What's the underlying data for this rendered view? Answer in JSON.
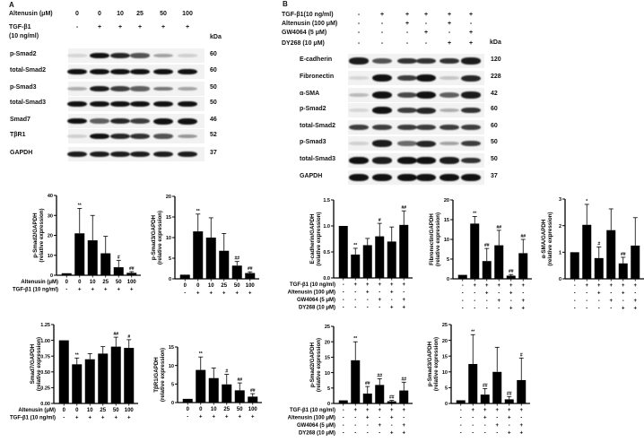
{
  "panel_a": {
    "letter": "A",
    "conditions": [
      {
        "label": "Altenusin (μM)",
        "values": [
          "0",
          "0",
          "10",
          "25",
          "50",
          "100"
        ]
      },
      {
        "label": "TGF-β1",
        "label2": "(10 ng/ml)",
        "values": [
          "-",
          "+",
          "+",
          "+",
          "+",
          "+"
        ]
      }
    ],
    "kda_label": "kDa",
    "blots": [
      {
        "name": "p-Smad2",
        "kda": "60",
        "intensity": [
          0.02,
          0.95,
          0.8,
          0.6,
          0.25,
          0.05
        ]
      },
      {
        "name": "total-Smad2",
        "kda": "60",
        "intensity": [
          0.95,
          0.9,
          0.9,
          0.9,
          0.9,
          0.9
        ]
      },
      {
        "name": "p-Smad3",
        "kda": "50",
        "intensity": [
          0.2,
          0.85,
          0.7,
          0.55,
          0.45,
          0.25
        ]
      },
      {
        "name": "total-Smad3",
        "kda": "50",
        "intensity": [
          0.95,
          0.95,
          0.95,
          0.9,
          0.95,
          0.95
        ]
      },
      {
        "name": "Smad7",
        "kda": "46",
        "intensity": [
          0.95,
          0.55,
          0.8,
          0.7,
          1.0,
          1.0
        ]
      },
      {
        "name": "TβR1",
        "kda": "52",
        "intensity": [
          0.05,
          0.95,
          0.8,
          0.75,
          0.6,
          0.3
        ]
      },
      {
        "name": "GAPDH",
        "kda": "37",
        "intensity": [
          0.85,
          0.85,
          0.85,
          0.85,
          0.85,
          0.85
        ]
      }
    ]
  },
  "panel_b": {
    "letter": "B",
    "conditions": [
      {
        "label": "TGF-β1(10 ng/ml)",
        "values": [
          "-",
          "+",
          "+",
          "+",
          "+",
          "+"
        ]
      },
      {
        "label": "Altenusin (100 μM)",
        "values": [
          "-",
          "-",
          "+",
          "-",
          "+",
          "-"
        ]
      },
      {
        "label": "GW4064 (5 μM)",
        "values": [
          "-",
          "-",
          "-",
          "+",
          "-",
          "+"
        ]
      },
      {
        "label": "DY268 (10 μM)",
        "values": [
          "-",
          "-",
          "-",
          "-",
          "+",
          "+"
        ]
      }
    ],
    "kda_label": "kDa",
    "blots": [
      {
        "name": "E-cadherin",
        "kda": "120",
        "intensity": [
          0.85,
          0.6,
          0.75,
          0.75,
          0.75,
          0.85
        ]
      },
      {
        "name": "Fibronectin",
        "kda": "228",
        "intensity": [
          0.02,
          1.0,
          0.7,
          1.0,
          0.1,
          0.8
        ]
      },
      {
        "name": "α-SMA",
        "kda": "42",
        "intensity": [
          0.15,
          0.9,
          0.65,
          0.95,
          0.55,
          0.85
        ]
      },
      {
        "name": "p-Smad2",
        "kda": "60",
        "intensity": [
          0.02,
          0.9,
          0.7,
          0.8,
          0.2,
          0.75
        ]
      },
      {
        "name": "total-Smad2",
        "kda": "60",
        "intensity": [
          0.7,
          0.7,
          0.7,
          0.7,
          0.7,
          0.7
        ]
      },
      {
        "name": "p-Smad3",
        "kda": "50",
        "intensity": [
          0.05,
          0.85,
          0.5,
          0.8,
          0.25,
          0.7
        ]
      },
      {
        "name": "total-Smad3",
        "kda": "50",
        "intensity": [
          0.9,
          0.85,
          0.9,
          0.9,
          0.85,
          0.75
        ]
      },
      {
        "name": "GAPDH",
        "kda": "37",
        "intensity": [
          0.95,
          0.95,
          0.95,
          0.95,
          0.95,
          0.95
        ]
      }
    ]
  },
  "chart_data": [
    {
      "type": "bar",
      "panel": "A",
      "ylabel": "p-Smad2/GAPDH",
      "ylabel2": "(relative expression)",
      "ylim": [
        0,
        40
      ],
      "yticks": [
        "0",
        "10",
        "20",
        "30",
        "40"
      ],
      "categories": [
        "0",
        "0",
        "10",
        "25",
        "50",
        "100"
      ],
      "row_labels": [
        "Altenusin (μM)",
        "TGF-β1 (10 ng/ml)"
      ],
      "rows": [
        [
          "0",
          "0",
          "10",
          "25",
          "50",
          "100"
        ],
        [
          "-",
          "+",
          "+",
          "+",
          "+",
          "+"
        ]
      ],
      "values": [
        1,
        21,
        17.5,
        11,
        4,
        1.2
      ],
      "errors": [
        0,
        12.5,
        12.5,
        8.5,
        3.5,
        0.6
      ],
      "annotations": [
        "",
        "**",
        "",
        "",
        "#",
        "##"
      ]
    },
    {
      "type": "bar",
      "panel": "A",
      "ylabel": "p-Smad3/GAPDH",
      "ylabel2": "(relative expression)",
      "ylim": [
        0,
        20
      ],
      "yticks": [
        "0",
        "5",
        "10",
        "15",
        "20"
      ],
      "categories": [
        "0",
        "0",
        "10",
        "25",
        "50",
        "100"
      ],
      "rows": [
        [
          "0",
          "0",
          "10",
          "25",
          "50",
          "100"
        ],
        [
          "-",
          "+",
          "+",
          "+",
          "+",
          "+"
        ]
      ],
      "values": [
        1,
        11.5,
        10,
        6.8,
        3.2,
        1.4
      ],
      "errors": [
        0,
        4.2,
        4.8,
        4.2,
        1,
        0.3
      ],
      "annotations": [
        "",
        "**",
        "",
        "",
        "##",
        "##"
      ]
    },
    {
      "type": "bar",
      "panel": "A",
      "ylabel": "Smad7/GAPDH",
      "ylabel2": "(relative expression)",
      "ylim": [
        0,
        1.25
      ],
      "yticks": [
        "0.00",
        "0.25",
        "0.50",
        "0.75",
        "1.00",
        "1.25"
      ],
      "categories": [
        "0",
        "0",
        "10",
        "25",
        "50",
        "100"
      ],
      "row_labels": [
        "Altenusin (μM)",
        "TGF-β1 (10 ng/ml)"
      ],
      "rows": [
        [
          "0",
          "0",
          "10",
          "25",
          "50",
          "100"
        ],
        [
          "-",
          "+",
          "+",
          "+",
          "+",
          "+"
        ]
      ],
      "values": [
        1.0,
        0.62,
        0.7,
        0.79,
        0.9,
        0.88
      ],
      "errors": [
        0,
        0.1,
        0.09,
        0.11,
        0.15,
        0.13
      ],
      "annotations": [
        "",
        "**",
        "",
        "",
        "##",
        "#"
      ]
    },
    {
      "type": "bar",
      "panel": "A",
      "ylabel": "TβR1/GAPDH",
      "ylabel2": "(relative expression)",
      "ylim": [
        0,
        15
      ],
      "yticks": [
        "0",
        "5",
        "10",
        "15"
      ],
      "categories": [
        "0",
        "0",
        "10",
        "25",
        "50",
        "100"
      ],
      "rows": [
        [
          "0",
          "0",
          "10",
          "25",
          "50",
          "100"
        ],
        [
          "-",
          "+",
          "+",
          "+",
          "+",
          "+"
        ]
      ],
      "values": [
        1,
        8.8,
        6.6,
        4.9,
        3.3,
        1.6
      ],
      "errors": [
        0,
        3.5,
        2.7,
        2.7,
        2,
        0.8
      ],
      "annotations": [
        "",
        "**",
        "",
        "#",
        "##",
        "##"
      ]
    },
    {
      "type": "bar",
      "panel": "B",
      "ylabel": "E-cadherin/GAPDH",
      "ylabel2": "(relative expression)",
      "ylim": [
        0,
        1.5
      ],
      "yticks": [
        "0.0",
        "0.5",
        "1.0",
        "1.5"
      ],
      "row_labels": [
        "TGF-β1 (10 ng/ml)",
        "Altenusin (100 μM)",
        "GW4064 (5 μM)",
        "DY268 (10 μM)"
      ],
      "rows": [
        [
          "-",
          "+",
          "+",
          "+",
          "+",
          "+"
        ],
        [
          "-",
          "-",
          "+",
          "-",
          "+",
          "-"
        ],
        [
          "-",
          "-",
          "-",
          "+",
          "-",
          "+"
        ],
        [
          "-",
          "-",
          "-",
          "-",
          "+",
          "+"
        ]
      ],
      "values": [
        1.0,
        0.45,
        0.63,
        0.8,
        0.7,
        1.02
      ],
      "errors": [
        0,
        0.12,
        0.13,
        0.25,
        0.28,
        0.27
      ],
      "annotations": [
        "",
        "**",
        "",
        "#",
        "",
        "##"
      ]
    },
    {
      "type": "bar",
      "panel": "B",
      "ylabel": "Fibronectin/GAPDH",
      "ylabel2": "(relative expression)",
      "ylim": [
        0,
        20
      ],
      "yticks": [
        "0",
        "5",
        "10",
        "15",
        "20"
      ],
      "rows": [
        [
          "-",
          "+",
          "+",
          "+",
          "+",
          "+"
        ],
        [
          "-",
          "-",
          "+",
          "-",
          "+",
          "-"
        ],
        [
          "-",
          "-",
          "-",
          "+",
          "-",
          "+"
        ],
        [
          "-",
          "-",
          "-",
          "-",
          "+",
          "+"
        ]
      ],
      "values": [
        1,
        14,
        4.5,
        8.5,
        0.8,
        6.5
      ],
      "errors": [
        0,
        1.8,
        3.2,
        3.8,
        0.3,
        3.5
      ],
      "annotations": [
        "",
        "**",
        "##",
        "##",
        "##",
        "##"
      ]
    },
    {
      "type": "bar",
      "panel": "B",
      "ylabel": "α-SMA/GAPDH",
      "ylabel2": "(relative expression)",
      "ylim": [
        0,
        3
      ],
      "yticks": [
        "0",
        "1",
        "2",
        "3"
      ],
      "rows": [
        [
          "-",
          "+",
          "+",
          "+",
          "+",
          "+"
        ],
        [
          "-",
          "-",
          "+",
          "-",
          "+",
          "-"
        ],
        [
          "-",
          "-",
          "-",
          "+",
          "-",
          "+"
        ],
        [
          "-",
          "-",
          "-",
          "-",
          "+",
          "+"
        ]
      ],
      "values": [
        1.0,
        2.03,
        0.78,
        1.83,
        0.58,
        1.25
      ],
      "errors": [
        0,
        0.77,
        0.42,
        0.8,
        0.23,
        1.05
      ],
      "annotations": [
        "",
        "*",
        "#",
        "",
        "##",
        ""
      ]
    },
    {
      "type": "bar",
      "panel": "B",
      "ylabel": "p-Smad2/GAPDH",
      "ylabel2": "(relative expression)",
      "ylim": [
        0,
        25
      ],
      "yticks": [
        "0",
        "5",
        "10",
        "15",
        "20",
        "25"
      ],
      "row_labels": [
        "TGF-β1 (10 ng/ml)",
        "Altenusin (100 μM)",
        "GW4064 (5 μM)",
        "DY268 (10 μM)"
      ],
      "rows": [
        [
          "-",
          "+",
          "+",
          "+",
          "+",
          "+"
        ],
        [
          "-",
          "-",
          "+",
          "-",
          "+",
          "-"
        ],
        [
          "-",
          "-",
          "-",
          "+",
          "-",
          "+"
        ],
        [
          "-",
          "-",
          "-",
          "-",
          "+",
          "+"
        ]
      ],
      "values": [
        1,
        14,
        3.2,
        6,
        0.7,
        4.2
      ],
      "errors": [
        0,
        6,
        2.3,
        2,
        0.3,
        2.7
      ],
      "annotations": [
        "",
        "**",
        "##",
        "##",
        "##",
        "##"
      ]
    },
    {
      "type": "bar",
      "panel": "B",
      "ylabel": "p-Smad3/GAPDH",
      "ylabel2": "(relative expression)",
      "ylim": [
        0,
        25
      ],
      "yticks": [
        "0",
        "5",
        "10",
        "15",
        "20",
        "25"
      ],
      "rows": [
        [
          "-",
          "+",
          "+",
          "+",
          "+",
          "+"
        ],
        [
          "-",
          "-",
          "+",
          "-",
          "+",
          "-"
        ],
        [
          "-",
          "-",
          "-",
          "+",
          "-",
          "+"
        ],
        [
          "-",
          "-",
          "-",
          "-",
          "+",
          "+"
        ]
      ],
      "values": [
        1,
        12.5,
        2.8,
        10,
        1.3,
        7.4
      ],
      "errors": [
        0,
        9.3,
        1.9,
        7.8,
        0.9,
        7
      ],
      "annotations": [
        "",
        "**",
        "##",
        "",
        "##",
        "#"
      ]
    }
  ]
}
